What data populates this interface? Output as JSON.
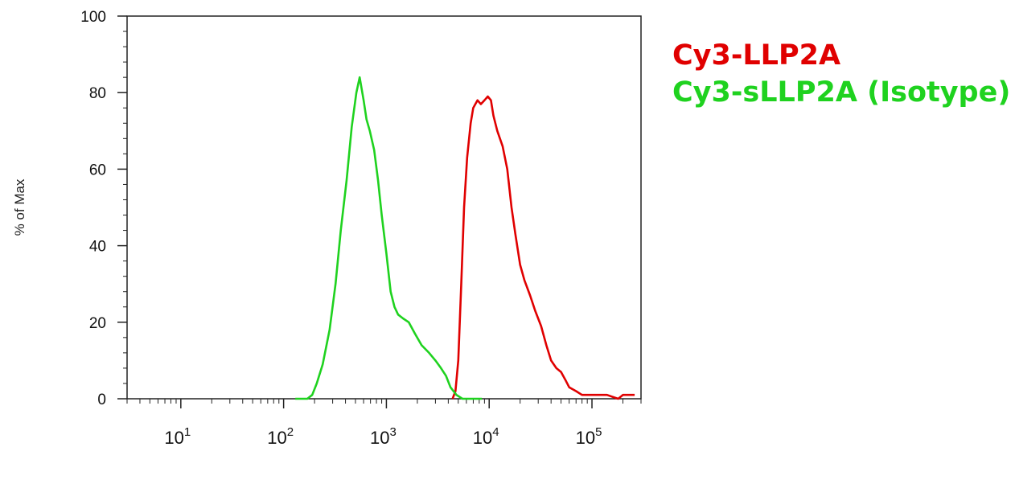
{
  "chart_data": {
    "type": "line",
    "title": "",
    "xlabel": "",
    "ylabel": "% of Max",
    "xscale": "log",
    "xlim": [
      3,
      300000
    ],
    "ylim": [
      0,
      100
    ],
    "grid": false,
    "legend_placement": "top-right (outside plot)",
    "y_ticks": [
      "0",
      "20",
      "40",
      "60",
      "80",
      "100"
    ],
    "x_ticks": [
      {
        "base": "10",
        "exp": "1"
      },
      {
        "base": "10",
        "exp": "2"
      },
      {
        "base": "10",
        "exp": "3"
      },
      {
        "base": "10",
        "exp": "4"
      },
      {
        "base": "10",
        "exp": "5"
      }
    ],
    "series": [
      {
        "name": "Cy3-LLP2A",
        "color": "#e00000",
        "points": [
          [
            4400,
            0
          ],
          [
            4700,
            2
          ],
          [
            5000,
            10
          ],
          [
            5350,
            30
          ],
          [
            5700,
            50
          ],
          [
            6100,
            63
          ],
          [
            6600,
            72
          ],
          [
            7000,
            76
          ],
          [
            7700,
            78
          ],
          [
            8300,
            77
          ],
          [
            9000,
            78
          ],
          [
            9700,
            79
          ],
          [
            10400,
            78
          ],
          [
            11000,
            74
          ],
          [
            12000,
            70
          ],
          [
            13500,
            66
          ],
          [
            15000,
            60
          ],
          [
            16500,
            50
          ],
          [
            18000,
            43
          ],
          [
            20000,
            35
          ],
          [
            22000,
            31
          ],
          [
            25000,
            27
          ],
          [
            28000,
            23
          ],
          [
            32000,
            19
          ],
          [
            36000,
            14
          ],
          [
            40000,
            10
          ],
          [
            45000,
            8
          ],
          [
            50000,
            7
          ],
          [
            55000,
            5
          ],
          [
            60000,
            3
          ],
          [
            70000,
            2
          ],
          [
            80000,
            1
          ],
          [
            100000,
            1
          ],
          [
            140000,
            1
          ],
          [
            180000,
            0
          ],
          [
            200000,
            1
          ],
          [
            260000,
            1
          ]
        ]
      },
      {
        "name": "Cy3-sLLP2A (Isotype)",
        "color": "#1fd21f",
        "points": [
          [
            130,
            0
          ],
          [
            170,
            0
          ],
          [
            190,
            1
          ],
          [
            210,
            4
          ],
          [
            240,
            9
          ],
          [
            280,
            18
          ],
          [
            320,
            30
          ],
          [
            360,
            44
          ],
          [
            410,
            57
          ],
          [
            460,
            71
          ],
          [
            510,
            80
          ],
          [
            550,
            84
          ],
          [
            600,
            78
          ],
          [
            640,
            73
          ],
          [
            690,
            70
          ],
          [
            760,
            65
          ],
          [
            830,
            57
          ],
          [
            900,
            48
          ],
          [
            1000,
            38
          ],
          [
            1100,
            28
          ],
          [
            1200,
            24
          ],
          [
            1300,
            22
          ],
          [
            1450,
            21
          ],
          [
            1650,
            20
          ],
          [
            1900,
            17
          ],
          [
            2200,
            14
          ],
          [
            2600,
            12
          ],
          [
            3000,
            10
          ],
          [
            3400,
            8
          ],
          [
            3800,
            6
          ],
          [
            4200,
            3
          ],
          [
            4800,
            1
          ],
          [
            5500,
            0
          ],
          [
            7000,
            0
          ],
          [
            8500,
            0
          ]
        ]
      }
    ]
  }
}
